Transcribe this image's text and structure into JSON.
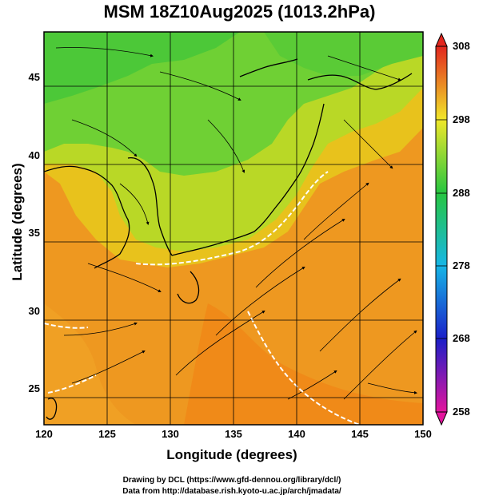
{
  "title": "MSM 18Z10Aug2025 (1013.2hPa)",
  "xlabel": "Longitude (degrees)",
  "ylabel": "Latitude  (degrees)",
  "x_ticks": [
    "120",
    "125",
    "130",
    "135",
    "140",
    "145",
    "150"
  ],
  "y_ticks": [
    "25",
    "30",
    "35",
    "40",
    "45"
  ],
  "colorbar": {
    "ticks": [
      "308",
      "298",
      "288",
      "278",
      "268",
      "258"
    ],
    "range": [
      258,
      308
    ]
  },
  "map": {
    "extent": {
      "lon": [
        120,
        150
      ],
      "lat": [
        22.4,
        47.6
      ]
    },
    "field": "temperature (K) with streamlines",
    "colors": {
      "warm": "#f09a1c",
      "mild": "#f2d21e",
      "cool": "#5ecb33",
      "land_outline": "#000000",
      "isoline": "#ffffff"
    }
  },
  "credits": {
    "line1": "Drawing by DCL (https://www.gfd-dennou.org/library/dcl/)",
    "line2": "Data from http://database.rish.kyoto-u.ac.jp/arch/jmadata/"
  }
}
